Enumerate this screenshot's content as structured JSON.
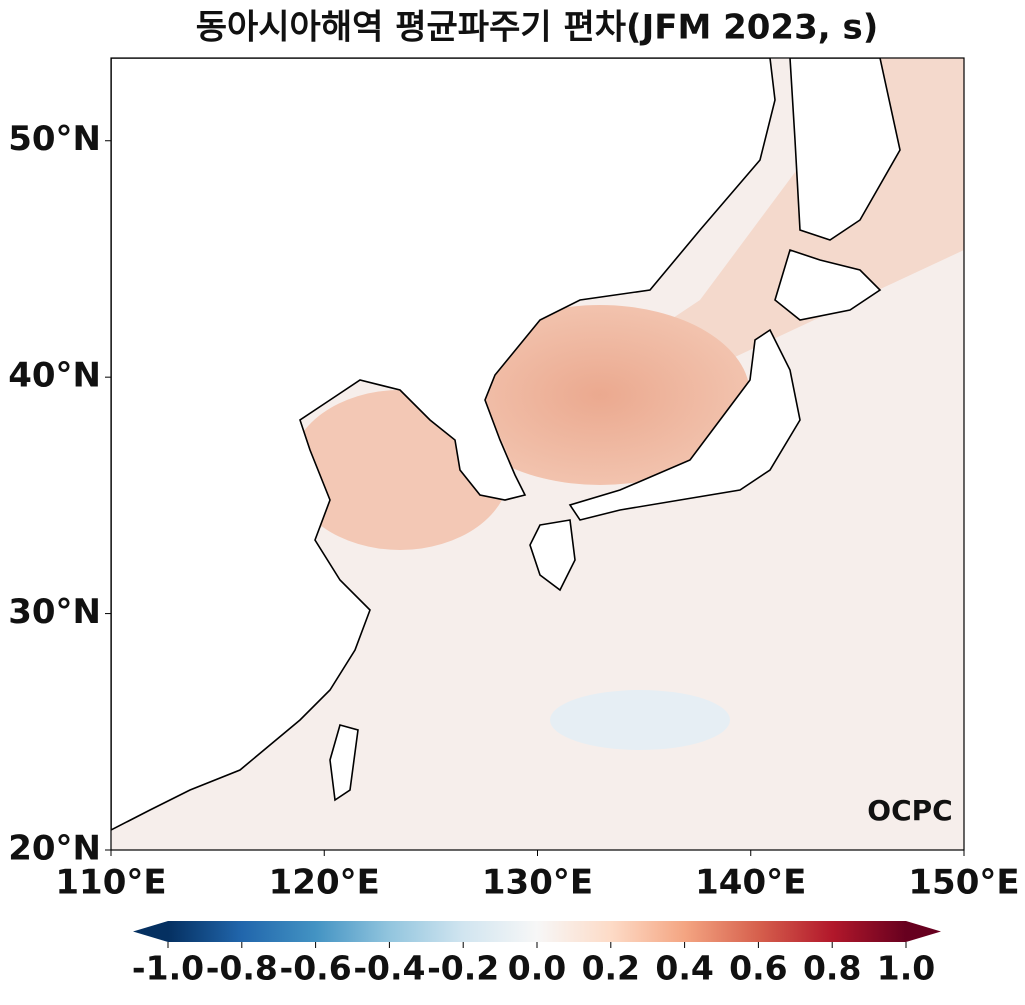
{
  "chart_data": {
    "type": "map",
    "title": "동아시아해역 평균파주기 편차(JFM 2023, s)",
    "xlim": [
      110,
      150
    ],
    "xticks": [
      {
        "value": 110,
        "label": "110°E"
      },
      {
        "value": 120,
        "label": "120°E"
      },
      {
        "value": 130,
        "label": "130°E"
      },
      {
        "value": 140,
        "label": "140°E"
      },
      {
        "value": 150,
        "label": "150°E"
      }
    ],
    "ylim": [
      20,
      53.5
    ],
    "yticks": [
      {
        "value": 20,
        "label": "20°N"
      },
      {
        "value": 30,
        "label": "30°N"
      },
      {
        "value": 40,
        "label": "40°N"
      },
      {
        "value": 50,
        "label": "50°N"
      }
    ],
    "colorbar": {
      "colormap": "RdBu_r",
      "lim": [
        -1,
        1
      ],
      "ticks": [
        {
          "value": -1,
          "label": "-1.0"
        },
        -0.8,
        -0.6,
        -0.4,
        -0.2,
        {
          "value": 0,
          "label": "0.0"
        },
        0.2,
        0.4,
        0.6,
        0.8,
        {
          "value": 1,
          "label": "1.0"
        }
      ]
    },
    "logo": "OCPC"
  }
}
